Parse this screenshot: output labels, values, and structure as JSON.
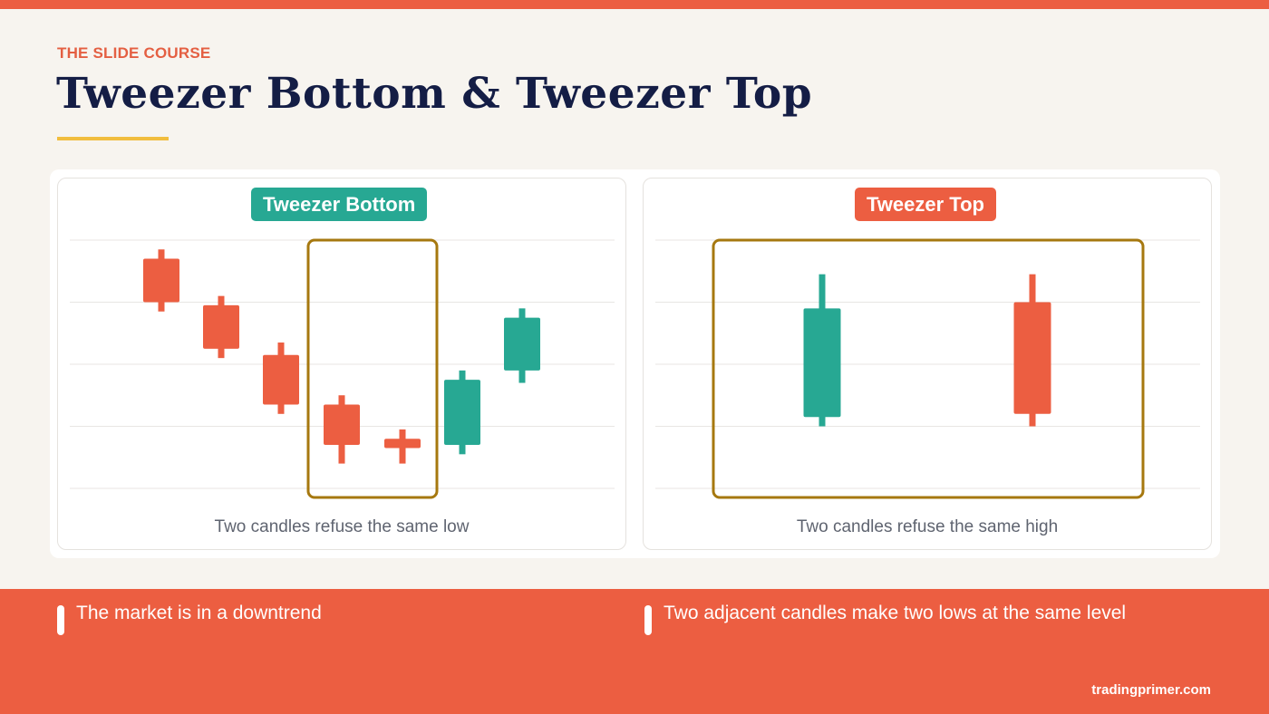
{
  "kicker": "THE SLIDE COURSE",
  "title": "Tweezer Bottom & Tweezer Top",
  "colors": {
    "bull": "#27a893",
    "bear": "#ec5e41",
    "highlight": "#a6780f",
    "accent": "#f1bd3e"
  },
  "bullets": [
    "The market is in a downtrend",
    "Two adjacent candles make two lows at the same level"
  ],
  "footer": "tradingprimer.com",
  "chart_data": [
    {
      "type": "candlestick",
      "title": "Tweezer Bottom",
      "caption": "Two candles refuse the same low",
      "grid": true,
      "ylim": [
        0,
        4
      ],
      "highlight_candles": [
        3,
        4
      ],
      "candles": [
        {
          "open": 3.0,
          "close": 3.7,
          "high": 3.85,
          "low": 2.85,
          "dir": "bear"
        },
        {
          "open": 2.25,
          "close": 2.95,
          "high": 3.1,
          "low": 2.1,
          "dir": "bear"
        },
        {
          "open": 1.35,
          "close": 2.15,
          "high": 2.35,
          "low": 1.2,
          "dir": "bear"
        },
        {
          "open": 0.7,
          "close": 1.35,
          "high": 1.5,
          "low": 0.4,
          "dir": "bear"
        },
        {
          "open": 0.65,
          "close": 0.8,
          "high": 0.95,
          "low": 0.4,
          "dir": "bear"
        },
        {
          "open": 0.7,
          "close": 1.75,
          "high": 1.9,
          "low": 0.55,
          "dir": "bull"
        },
        {
          "open": 1.9,
          "close": 2.75,
          "high": 2.9,
          "low": 1.7,
          "dir": "bull"
        }
      ]
    },
    {
      "type": "candlestick",
      "title": "Tweezer Top",
      "caption": "Two candles refuse the same high",
      "grid": true,
      "ylim": [
        0,
        4
      ],
      "highlight_candles": [
        0,
        1
      ],
      "candles": [
        {
          "open": 1.15,
          "close": 2.9,
          "high": 3.45,
          "low": 1.0,
          "dir": "bull"
        },
        {
          "open": 1.2,
          "close": 3.0,
          "high": 3.45,
          "low": 1.0,
          "dir": "bear"
        }
      ]
    }
  ]
}
